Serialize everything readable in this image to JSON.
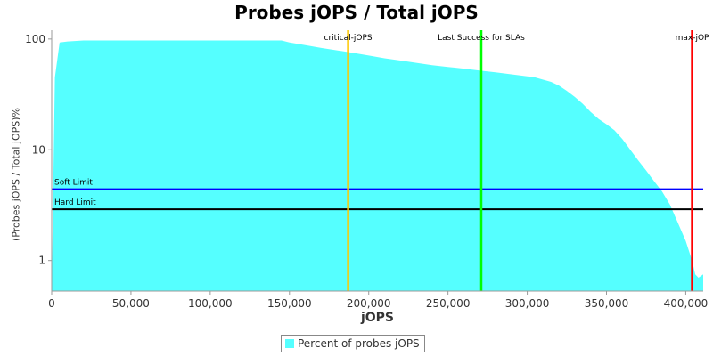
{
  "chart_data": {
    "type": "area",
    "title": "Probes jOPS / Total jOPS",
    "xlabel": "jOPS",
    "ylabel": "(Probes jOPS / Total jOPS)%",
    "y_scale": "log",
    "xlim": [
      0,
      411000
    ],
    "ylim": [
      0.53,
      120
    ],
    "x_ticks": [
      0,
      50000,
      100000,
      150000,
      200000,
      250000,
      300000,
      350000,
      400000
    ],
    "x_tick_labels": [
      "0",
      "50,000",
      "100,000",
      "150,000",
      "200,000",
      "250,000",
      "300,000",
      "350,000",
      "400,000"
    ],
    "y_ticks": [
      1,
      10,
      100
    ],
    "y_tick_labels": [
      "1",
      "10",
      "100"
    ],
    "grid": false,
    "legend_position": "bottom",
    "series": [
      {
        "name": "Percent of probes jOPS",
        "color": "#55ffff",
        "x": [
          0,
          2000,
          5000,
          10000,
          20000,
          50000,
          100000,
          145000,
          150000,
          160000,
          170000,
          180000,
          190000,
          200000,
          210000,
          220000,
          230000,
          240000,
          250000,
          260000,
          270000,
          280000,
          290000,
          300000,
          305000,
          310000,
          315000,
          320000,
          325000,
          330000,
          335000,
          340000,
          345000,
          350000,
          355000,
          360000,
          365000,
          370000,
          375000,
          380000,
          385000,
          390000,
          395000,
          400000,
          404000,
          406000,
          408000,
          411000
        ],
        "values": [
          0.53,
          45,
          93,
          95,
          97,
          97,
          97,
          97,
          93,
          88,
          83,
          79,
          75,
          71,
          67,
          64,
          61,
          58,
          56,
          54,
          52,
          50,
          48,
          46,
          45,
          43,
          41,
          38,
          34,
          30,
          26,
          22,
          19,
          17,
          15,
          12.5,
          10,
          8,
          6.5,
          5.2,
          4.2,
          3.2,
          2.2,
          1.5,
          1.0,
          0.75,
          0.7,
          0.75
        ]
      }
    ],
    "threshold_lines": [
      {
        "label": "Soft Limit",
        "value": 4.4,
        "color": "#0000ff"
      },
      {
        "label": "Hard Limit",
        "value": 2.9,
        "color": "#000000"
      }
    ],
    "vertical_markers": [
      {
        "label": "critical-jOPS",
        "value": 187000,
        "color": "#ffc800"
      },
      {
        "label": "Last Success for SLAs",
        "value": 271000,
        "color": "#00ff00"
      },
      {
        "label": "max-jOP",
        "value": 404000,
        "color": "#ff0000"
      }
    ]
  }
}
